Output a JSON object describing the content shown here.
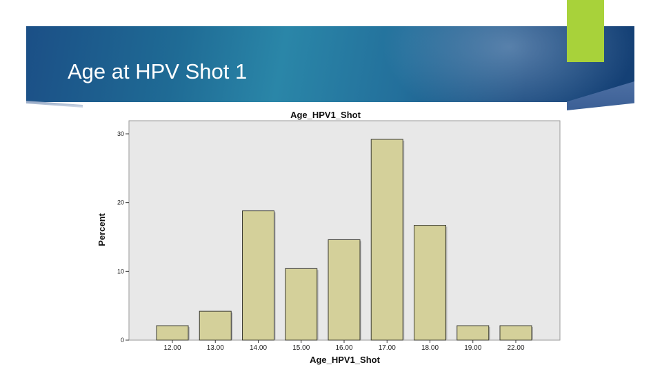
{
  "slide": {
    "title": "Age at HPV Shot 1"
  },
  "colors": {
    "banner": "#1f6b95",
    "accent": "#a8d23a",
    "plot_background": "#e8e8e8",
    "bar_fill": "#d4d09a",
    "bar_edge": "#3a3a32"
  },
  "chart_data": {
    "type": "bar",
    "title": "Age_HPV1_Shot",
    "xlabel": "Age_HPV1_Shot",
    "ylabel": "Percent",
    "categories": [
      "12.00",
      "13.00",
      "14.00",
      "15.00",
      "16.00",
      "17.00",
      "18.00",
      "19.00",
      "22.00"
    ],
    "values": [
      2.1,
      4.2,
      18.8,
      10.4,
      14.6,
      29.2,
      16.7,
      2.1,
      2.1
    ],
    "ylim": [
      0,
      30
    ],
    "yticks": [
      0,
      10,
      20,
      30
    ],
    "grid": false,
    "legend": "none"
  }
}
